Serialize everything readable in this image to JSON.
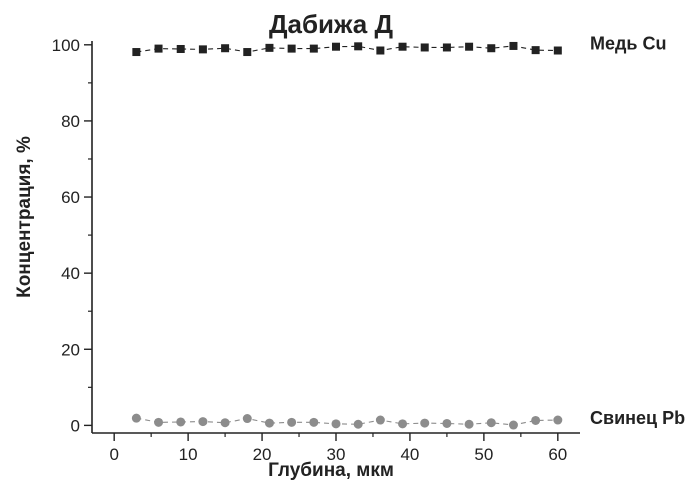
{
  "chart_data": {
    "type": "line",
    "title": "Дабижа Д",
    "xlabel": "Глубина, мкм",
    "ylabel": "Концентрация, %",
    "xlim": [
      -3,
      63
    ],
    "ylim": [
      -2,
      101
    ],
    "xticks": [
      0,
      10,
      20,
      30,
      40,
      50,
      60
    ],
    "yticks": [
      0,
      20,
      40,
      60,
      80,
      100
    ],
    "x": [
      3,
      6,
      9,
      12,
      15,
      18,
      21,
      24,
      27,
      30,
      33,
      36,
      39,
      42,
      45,
      48,
      51,
      54,
      57,
      60
    ],
    "series": [
      {
        "name": "Медь Cu",
        "marker": "square",
        "color": "#222222",
        "values": [
          98.1,
          99.0,
          98.9,
          98.8,
          99.1,
          98.1,
          99.2,
          99.0,
          99.0,
          99.5,
          99.6,
          98.5,
          99.5,
          99.3,
          99.3,
          99.5,
          99.1,
          99.7,
          98.6,
          98.5
        ]
      },
      {
        "name": "Свинец Pb",
        "marker": "circle",
        "color": "#8c8c8c",
        "values": [
          1.9,
          0.8,
          0.9,
          1.0,
          0.7,
          1.8,
          0.6,
          0.8,
          0.8,
          0.4,
          0.3,
          1.4,
          0.4,
          0.6,
          0.5,
          0.3,
          0.7,
          0.1,
          1.3,
          1.4
        ]
      }
    ],
    "grid": false,
    "legend": "series labels at right end of lines"
  }
}
